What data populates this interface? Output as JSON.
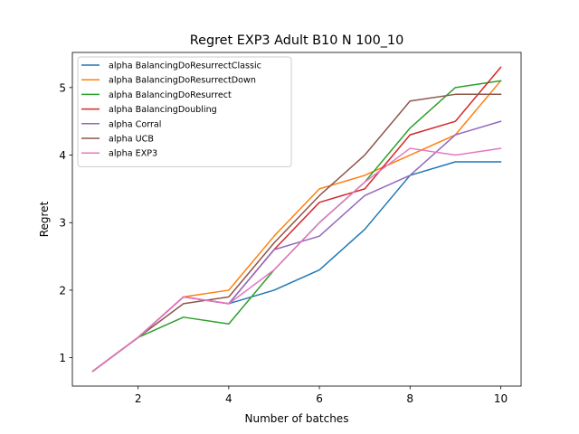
{
  "chart_data": {
    "type": "line",
    "title": "Regret EXP3 Adult B10 N 100_10",
    "xlabel": "Number of batches",
    "ylabel": "Regret",
    "xlim": [
      0.55,
      10.45
    ],
    "ylim": [
      0.58,
      5.52
    ],
    "xticks": [
      2,
      4,
      6,
      8,
      10
    ],
    "yticks": [
      1,
      2,
      3,
      4,
      5
    ],
    "grid": false,
    "legend_position": "top-left",
    "x": [
      1,
      2,
      3,
      4,
      5,
      6,
      7,
      8,
      9,
      10
    ],
    "series": [
      {
        "name": "alpha BalancingDoResurrectClassic",
        "color": "#1f77b4",
        "values": [
          0.8,
          1.3,
          1.9,
          1.8,
          2.0,
          2.3,
          2.9,
          3.7,
          3.9,
          3.9
        ]
      },
      {
        "name": "alpha BalancingDoResurrectDown",
        "color": "#ff7f0e",
        "values": [
          0.8,
          1.3,
          1.9,
          2.0,
          2.8,
          3.5,
          3.7,
          4.0,
          4.3,
          5.1
        ]
      },
      {
        "name": "alpha BalancingDoResurrect",
        "color": "#2ca02c",
        "values": [
          0.8,
          1.3,
          1.6,
          1.5,
          2.3,
          3.0,
          3.6,
          4.4,
          5.0,
          5.1
        ]
      },
      {
        "name": "alpha BalancingDoubling",
        "color": "#d62728",
        "values": [
          0.8,
          1.3,
          1.9,
          1.8,
          2.6,
          3.3,
          3.5,
          4.3,
          4.5,
          5.3
        ]
      },
      {
        "name": "alpha Corral",
        "color": "#9467bd",
        "values": [
          0.8,
          1.3,
          1.9,
          1.8,
          2.6,
          2.8,
          3.4,
          3.7,
          4.3,
          4.5
        ]
      },
      {
        "name": "alpha UCB",
        "color": "#8c564b",
        "values": [
          0.8,
          1.3,
          1.8,
          1.9,
          2.7,
          3.4,
          4.0,
          4.8,
          4.9,
          4.9
        ]
      },
      {
        "name": "alpha EXP3",
        "color": "#e377c2",
        "values": [
          0.8,
          1.3,
          1.9,
          1.8,
          2.3,
          3.0,
          3.6,
          4.1,
          4.0,
          4.1
        ]
      }
    ]
  }
}
